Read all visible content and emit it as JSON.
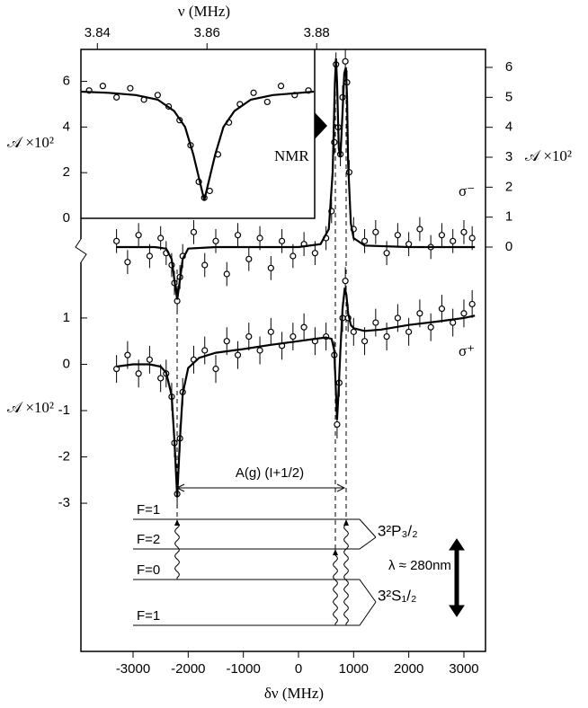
{
  "chart_data": [
    {
      "type": "line",
      "xlabel": "δν (MHz)",
      "ylabel": "𝒜 ×10²",
      "label": "σ⁺",
      "xlim": [
        -3946,
        3392
      ],
      "xticks": [
        -3000,
        -2000,
        -1000,
        0,
        1000,
        2000,
        3000
      ],
      "ylim": [
        -6.2,
        6.8
      ],
      "yticks": [
        -3,
        -2,
        -1,
        0,
        1
      ],
      "y_axis_side": "left",
      "series": [
        {
          "color": "#000000",
          "marker": "circle",
          "x": [
            -3300,
            -3100,
            -2900,
            -2700,
            -2500,
            -2400,
            -2300,
            -2250,
            -2200,
            -2150,
            -2100,
            -1900,
            -1700,
            -1500,
            -1300,
            -1100,
            -900,
            -700,
            -500,
            -300,
            -100,
            100,
            300,
            500,
            650,
            700,
            740,
            800,
            850,
            900,
            1000,
            1200,
            1400,
            1600,
            1800,
            2000,
            2200,
            2400,
            2600,
            2800,
            3000,
            3150
          ],
          "values": [
            -0.1,
            0.2,
            -0.2,
            0.1,
            -0.3,
            -0.2,
            -0.7,
            -1.7,
            -2.8,
            -1.6,
            -0.6,
            0.1,
            0.3,
            -0.1,
            0.5,
            0.2,
            0.6,
            0.3,
            0.7,
            0.4,
            0.6,
            0.8,
            0.5,
            0.6,
            0.2,
            -1.3,
            -0.4,
            1.0,
            1.8,
            1.0,
            0.7,
            0.5,
            0.9,
            0.6,
            1.0,
            0.7,
            1.1,
            0.8,
            1.2,
            0.9,
            1.1,
            1.3
          ],
          "errors": [
            0.3,
            0.3,
            0.3,
            0.3,
            0.3,
            0.3,
            0.3,
            0.3,
            0.3,
            0.3,
            0.3,
            0.3,
            0.3,
            0.3,
            0.3,
            0.3,
            0.3,
            0.3,
            0.3,
            0.3,
            0.3,
            0.3,
            0.3,
            0.3,
            0.3,
            0.3,
            0.3,
            0.3,
            0.3,
            0.3,
            0.3,
            0.3,
            0.3,
            0.3,
            0.3,
            0.3,
            0.3,
            0.3,
            0.3,
            0.3,
            0.3,
            0.3
          ]
        },
        {
          "color": "#000000",
          "marker": "none",
          "x": [
            -3300,
            -3000,
            -2700,
            -2500,
            -2400,
            -2300,
            -2250,
            -2200,
            -2150,
            -2100,
            -2000,
            -1800,
            -1500,
            -1000,
            -500,
            0,
            300,
            500,
            600,
            650,
            700,
            730,
            760,
            800,
            840,
            870,
            900,
            950,
            1000,
            1200,
            1500,
            2000,
            2500,
            3000,
            3200
          ],
          "values": [
            -0.05,
            0,
            0,
            -0.05,
            -0.18,
            -0.67,
            -1.65,
            -2.87,
            -1.63,
            -0.64,
            -0.08,
            0.14,
            0.25,
            0.33,
            0.42,
            0.5,
            0.55,
            0.58,
            0.55,
            0.3,
            -1.2,
            -0.5,
            0.3,
            1.2,
            1.65,
            1.5,
            1.1,
            0.85,
            0.78,
            0.72,
            0.75,
            0.85,
            0.92,
            1.0,
            1.05
          ]
        }
      ]
    },
    {
      "type": "line",
      "ylabel": "𝒜 ×10²",
      "label": "σ⁻",
      "xlim": [
        -3946,
        3392
      ],
      "ylim": [
        -13.5,
        6.6
      ],
      "yticks": [
        0,
        1,
        2,
        3,
        4,
        5,
        6
      ],
      "y_axis_side": "right",
      "series": [
        {
          "color": "#000000",
          "marker": "circle",
          "x": [
            -3300,
            -3100,
            -2900,
            -2700,
            -2500,
            -2400,
            -2300,
            -2250,
            -2200,
            -2150,
            -2100,
            -1900,
            -1700,
            -1500,
            -1300,
            -1100,
            -900,
            -700,
            -500,
            -300,
            -100,
            100,
            300,
            500,
            600,
            650,
            680,
            720,
            760,
            800,
            850,
            880,
            920,
            1000,
            1200,
            1400,
            1600,
            1800,
            2000,
            2200,
            2400,
            2600,
            2800,
            3000,
            3150
          ],
          "values": [
            0.2,
            -0.5,
            0.4,
            -0.3,
            0.3,
            -0.2,
            -0.6,
            -1.2,
            -1.8,
            -1.0,
            -0.3,
            0.5,
            -0.6,
            0.2,
            -0.9,
            0.4,
            -0.4,
            0.3,
            -0.7,
            0.2,
            -0.3,
            0.1,
            -0.2,
            0.3,
            1.2,
            3.5,
            6.1,
            4.0,
            3.1,
            5.0,
            6.2,
            5.5,
            2.5,
            0.6,
            0.2,
            0.5,
            -0.2,
            0.4,
            0.1,
            0.6,
            0.0,
            0.4,
            0.2,
            0.5,
            0.3
          ],
          "errors": [
            0.4,
            0.4,
            0.4,
            0.4,
            0.4,
            0.4,
            0.4,
            0.4,
            0.4,
            0.4,
            0.4,
            0.4,
            0.4,
            0.4,
            0.4,
            0.4,
            0.4,
            0.4,
            0.4,
            0.4,
            0.4,
            0.4,
            0.4,
            0.4,
            0.4,
            0.4,
            0.4,
            0.4,
            0.4,
            0.4,
            0.4,
            0.4,
            0.4,
            0.4,
            0.4,
            0.4,
            0.4,
            0.4,
            0.4,
            0.4,
            0.4,
            0.4,
            0.4,
            0.4,
            0.4
          ]
        },
        {
          "color": "#000000",
          "marker": "none",
          "x": [
            -3300,
            -2600,
            -2400,
            -2300,
            -2250,
            -2200,
            -2150,
            -2100,
            -2000,
            -1500,
            0,
            400,
            550,
            620,
            660,
            680,
            700,
            730,
            760,
            800,
            830,
            860,
            880,
            900,
            950,
            1000,
            1200,
            2000,
            3200
          ],
          "values": [
            0,
            0,
            -0.05,
            -0.4,
            -1.1,
            -1.75,
            -1.1,
            -0.4,
            -0.05,
            0,
            0,
            0.1,
            0.6,
            2.5,
            5.5,
            6.3,
            5.5,
            3.3,
            3.0,
            4.5,
            5.8,
            6.0,
            5.0,
            2.8,
            0.8,
            0.3,
            0.05,
            0,
            0
          ]
        }
      ]
    },
    {
      "type": "line",
      "xlabel": "ν (MHz)",
      "ylabel": "𝒜 ×10²",
      "label": "NMR",
      "xlim": [
        3.837,
        3.9108
      ],
      "xticks": [
        3.84,
        3.86,
        3.88
      ],
      "ylim": [
        0,
        7.4
      ],
      "yticks": [
        0,
        2,
        4,
        6
      ],
      "y_axis_side": "left",
      "series": [
        {
          "color": "#000000",
          "marker": "circle",
          "x": [
            3.8385,
            3.841,
            3.8435,
            3.846,
            3.8485,
            3.851,
            3.853,
            3.855,
            3.857,
            3.8585,
            3.8595,
            3.8605,
            3.862,
            3.864,
            3.866,
            3.8685,
            3.871,
            3.8735,
            3.876,
            3.8785
          ],
          "values": [
            5.6,
            5.8,
            5.3,
            5.7,
            5.2,
            5.4,
            4.9,
            4.3,
            3.2,
            1.6,
            0.9,
            1.2,
            2.8,
            4.2,
            5.0,
            5.5,
            5.1,
            5.8,
            5.4,
            5.6
          ]
        },
        {
          "color": "#000000",
          "marker": "none",
          "x": [
            3.837,
            3.842,
            3.847,
            3.851,
            3.854,
            3.856,
            3.8575,
            3.8595,
            3.8615,
            3.863,
            3.865,
            3.868,
            3.872,
            3.877,
            3.8795
          ],
          "values": [
            5.55,
            5.5,
            5.4,
            5.2,
            4.7,
            4.0,
            2.8,
            0.8,
            2.8,
            4.0,
            4.7,
            5.2,
            5.4,
            5.5,
            5.55
          ]
        }
      ]
    }
  ],
  "level_diagram": {
    "interval_label": "A(g) (I+1/2)",
    "upper_levels": [
      "F=1",
      "F=2"
    ],
    "lower_levels": [
      "F=0",
      "F=1"
    ],
    "upper_state": "3²P₃/₂",
    "lower_state": "3²S₁/₂",
    "wavelength": "λ ≈ 280nm"
  }
}
